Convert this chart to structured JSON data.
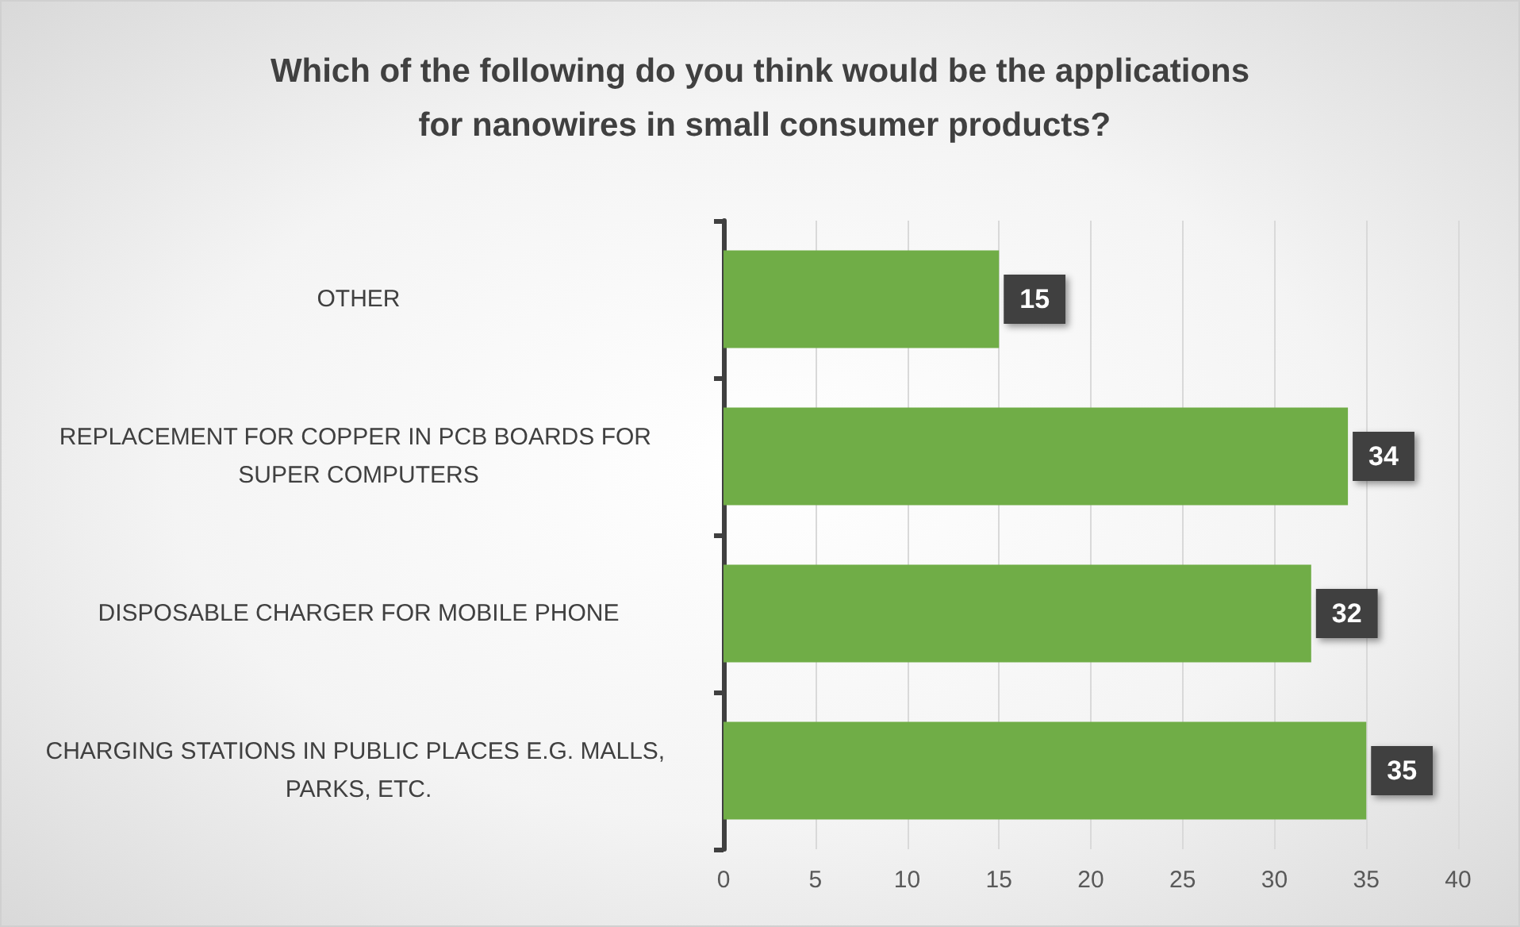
{
  "chart_data": {
    "type": "bar",
    "orientation": "horizontal",
    "title": "Which of the following do you think would be the applications for nanowires in small consumer products?",
    "categories": [
      "OTHER",
      "REPLACEMENT FOR COPPER IN PCB BOARDS FOR SUPER COMPUTERS",
      "DISPOSABLE CHARGER FOR MOBILE PHONE",
      "CHARGING STATIONS IN PUBLIC PLACES E.G. MALLS, PARKS, ETC."
    ],
    "values": [
      15,
      34,
      32,
      35
    ],
    "color": "#70ad47",
    "xlim": [
      0,
      40
    ],
    "xticks": [
      0,
      5,
      10,
      15,
      20,
      25,
      30,
      35,
      40
    ],
    "grid": "x",
    "data_labels": true
  }
}
